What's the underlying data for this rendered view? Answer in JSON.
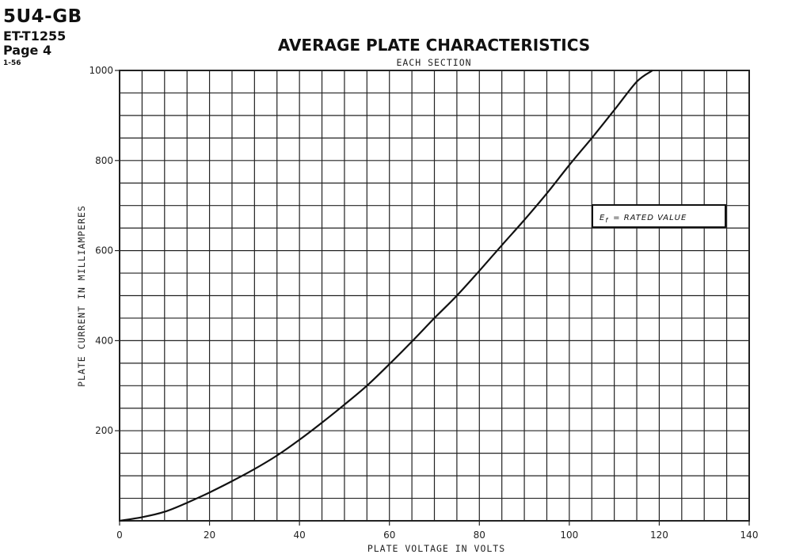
{
  "header": {
    "tube_type": "5U4-GB",
    "document_code": "ET-T1255",
    "page_label": "Page 4",
    "date_code": "1-56"
  },
  "chart_data": {
    "type": "line",
    "title": "AVERAGE PLATE CHARACTERISTICS",
    "subtitle": "EACH SECTION",
    "xlabel": "PLATE VOLTAGE IN VOLTS",
    "ylabel": "PLATE CURRENT IN MILLIAMPERES",
    "xlim": [
      0,
      140
    ],
    "ylim": [
      0,
      1000
    ],
    "x_ticks": [
      {
        "value": 0,
        "label": "0"
      },
      {
        "value": 20,
        "label": "20"
      },
      {
        "value": 40,
        "label": "40"
      },
      {
        "value": 60,
        "label": "60"
      },
      {
        "value": 80,
        "label": "80"
      },
      {
        "value": 100,
        "label": "100"
      },
      {
        "value": 120,
        "label": "120"
      },
      {
        "value": 140,
        "label": "140"
      }
    ],
    "y_ticks": [
      {
        "value": 200,
        "label": "200"
      },
      {
        "value": 400,
        "label": "400"
      },
      {
        "value": 600,
        "label": "600"
      },
      {
        "value": 800,
        "label": "800"
      },
      {
        "value": 1000,
        "label": "1000"
      }
    ],
    "grid": true,
    "grid_x_step": 5,
    "grid_y_step": 50,
    "annotation": {
      "symbol": "E",
      "subscript": "f",
      "text": "= RATED VALUE"
    },
    "series": [
      {
        "x": [
          0,
          5,
          10,
          15,
          20,
          25,
          30,
          35,
          40,
          45,
          50,
          55,
          60,
          65,
          70,
          75,
          80,
          85,
          90,
          95,
          100,
          105,
          110,
          115,
          118.5
        ],
        "y": [
          0,
          8,
          20,
          40,
          63,
          88,
          115,
          145,
          180,
          218,
          258,
          300,
          348,
          398,
          450,
          500,
          555,
          612,
          668,
          727,
          790,
          850,
          912,
          975,
          1000
        ]
      }
    ],
    "colors": {
      "line": "#111111",
      "grid": "#222222",
      "background": "#ffffff"
    }
  }
}
